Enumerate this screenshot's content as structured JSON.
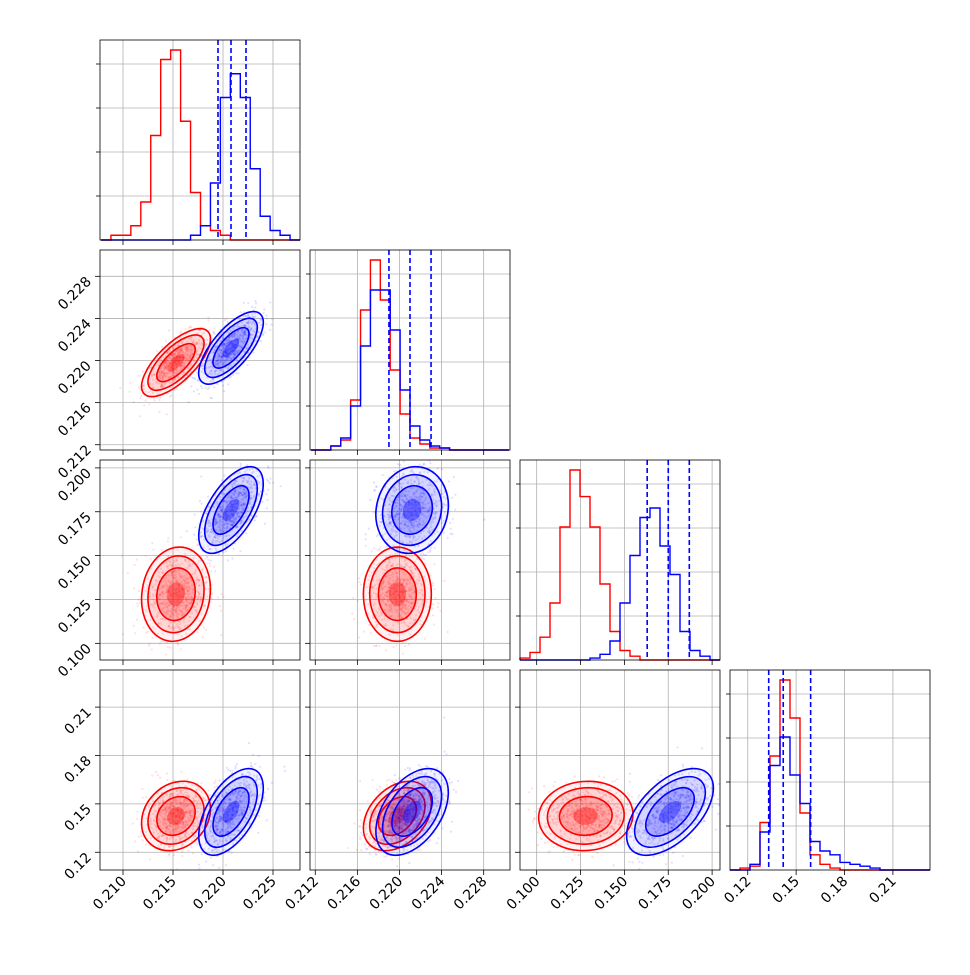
{
  "chart_data": {
    "type": "corner",
    "params": [
      {
        "ticks": [
          "0.210",
          "0.215",
          "0.220",
          "0.225"
        ],
        "tick_values": [
          0.21,
          0.215,
          0.22,
          0.225
        ],
        "range": [
          0.2077,
          0.2277
        ]
      },
      {
        "ticks": [
          "0.212",
          "0.216",
          "0.220",
          "0.224",
          "0.228"
        ],
        "tick_values": [
          0.212,
          0.216,
          0.22,
          0.224,
          0.228
        ],
        "range": [
          0.2115,
          0.2305
        ]
      },
      {
        "ticks": [
          "0.100",
          "0.125",
          "0.150",
          "0.175",
          "0.200"
        ],
        "tick_values": [
          0.1,
          0.125,
          0.15,
          0.175,
          0.2
        ],
        "range": [
          0.0905,
          0.2045
        ]
      },
      {
        "ticks": [
          "0.12",
          "0.15",
          "0.18",
          "0.21"
        ],
        "tick_values": [
          0.12,
          0.15,
          0.18,
          0.21
        ],
        "range": [
          0.109,
          0.233
        ]
      }
    ],
    "grid": true,
    "series": [
      {
        "color": "#ff0000",
        "mean": [
          0.2153,
          0.2198,
          0.128,
          0.1425
        ],
        "std": [
          0.0016,
          0.0015,
          0.0125,
          0.01
        ],
        "hist": [
          [
            0.2078,
            0.2277,
            [
              0,
              1,
              1,
              3,
              8,
              22,
              38,
              40,
              25,
              10,
              3,
              2,
              1,
              0,
              0,
              0,
              0,
              0,
              0,
              0
            ]
          ],
          [
            0.2116,
            0.2304,
            [
              0,
              0,
              2,
              5,
              25,
              70,
              95,
              75,
              40,
              18,
              6,
              3,
              1,
              1,
              0,
              0,
              0,
              0,
              0,
              0
            ]
          ],
          [
            0.0905,
            0.2045,
            [
              1,
              4,
              12,
              30,
              70,
              100,
              86,
              70,
              40,
              15,
              5,
              2,
              0,
              0,
              0,
              0,
              0,
              0,
              0,
              0
            ]
          ],
          [
            0.109,
            0.233,
            [
              0,
              1,
              2,
              25,
              60,
              100,
              80,
              30,
              8,
              3,
              1,
              0,
              0,
              0,
              0,
              0,
              0,
              0,
              0,
              0
            ]
          ]
        ],
        "quantile_lines": []
      },
      {
        "color": "#0000ff",
        "mean": [
          0.2208,
          0.2212,
          0.176,
          0.145
        ],
        "std": [
          0.0015,
          0.0016,
          0.0115,
          0.0125
        ],
        "hist": [
          [
            0.2078,
            0.2277,
            [
              0,
              0,
              0,
              0,
              0,
              0,
              0,
              0,
              0,
              1,
              3,
              12,
              30,
              35,
              30,
              15,
              5,
              2,
              1,
              0
            ]
          ],
          [
            0.2116,
            0.2304,
            [
              0,
              0,
              2,
              6,
              22,
              52,
              80,
              80,
              60,
              30,
              12,
              5,
              2,
              1,
              0,
              0,
              0,
              0,
              0,
              0
            ]
          ],
          [
            0.0905,
            0.2045,
            [
              0,
              0,
              0,
              0,
              0,
              0,
              0,
              1,
              3,
              10,
              30,
              55,
              75,
              80,
              60,
              45,
              15,
              5,
              2,
              0
            ]
          ],
          [
            0.109,
            0.233,
            [
              0,
              0,
              3,
              20,
              55,
              70,
              50,
              35,
              15,
              10,
              8,
              4,
              3,
              2,
              1,
              0,
              0,
              0,
              0,
              0
            ]
          ]
        ],
        "quantile_lines": [
          [
            0.2195,
            0.2208,
            0.2223
          ],
          [
            0.219,
            0.221,
            0.223
          ],
          [
            0.163,
            0.175,
            0.187
          ],
          [
            0.133,
            0.142,
            0.159
          ]
        ]
      }
    ]
  }
}
